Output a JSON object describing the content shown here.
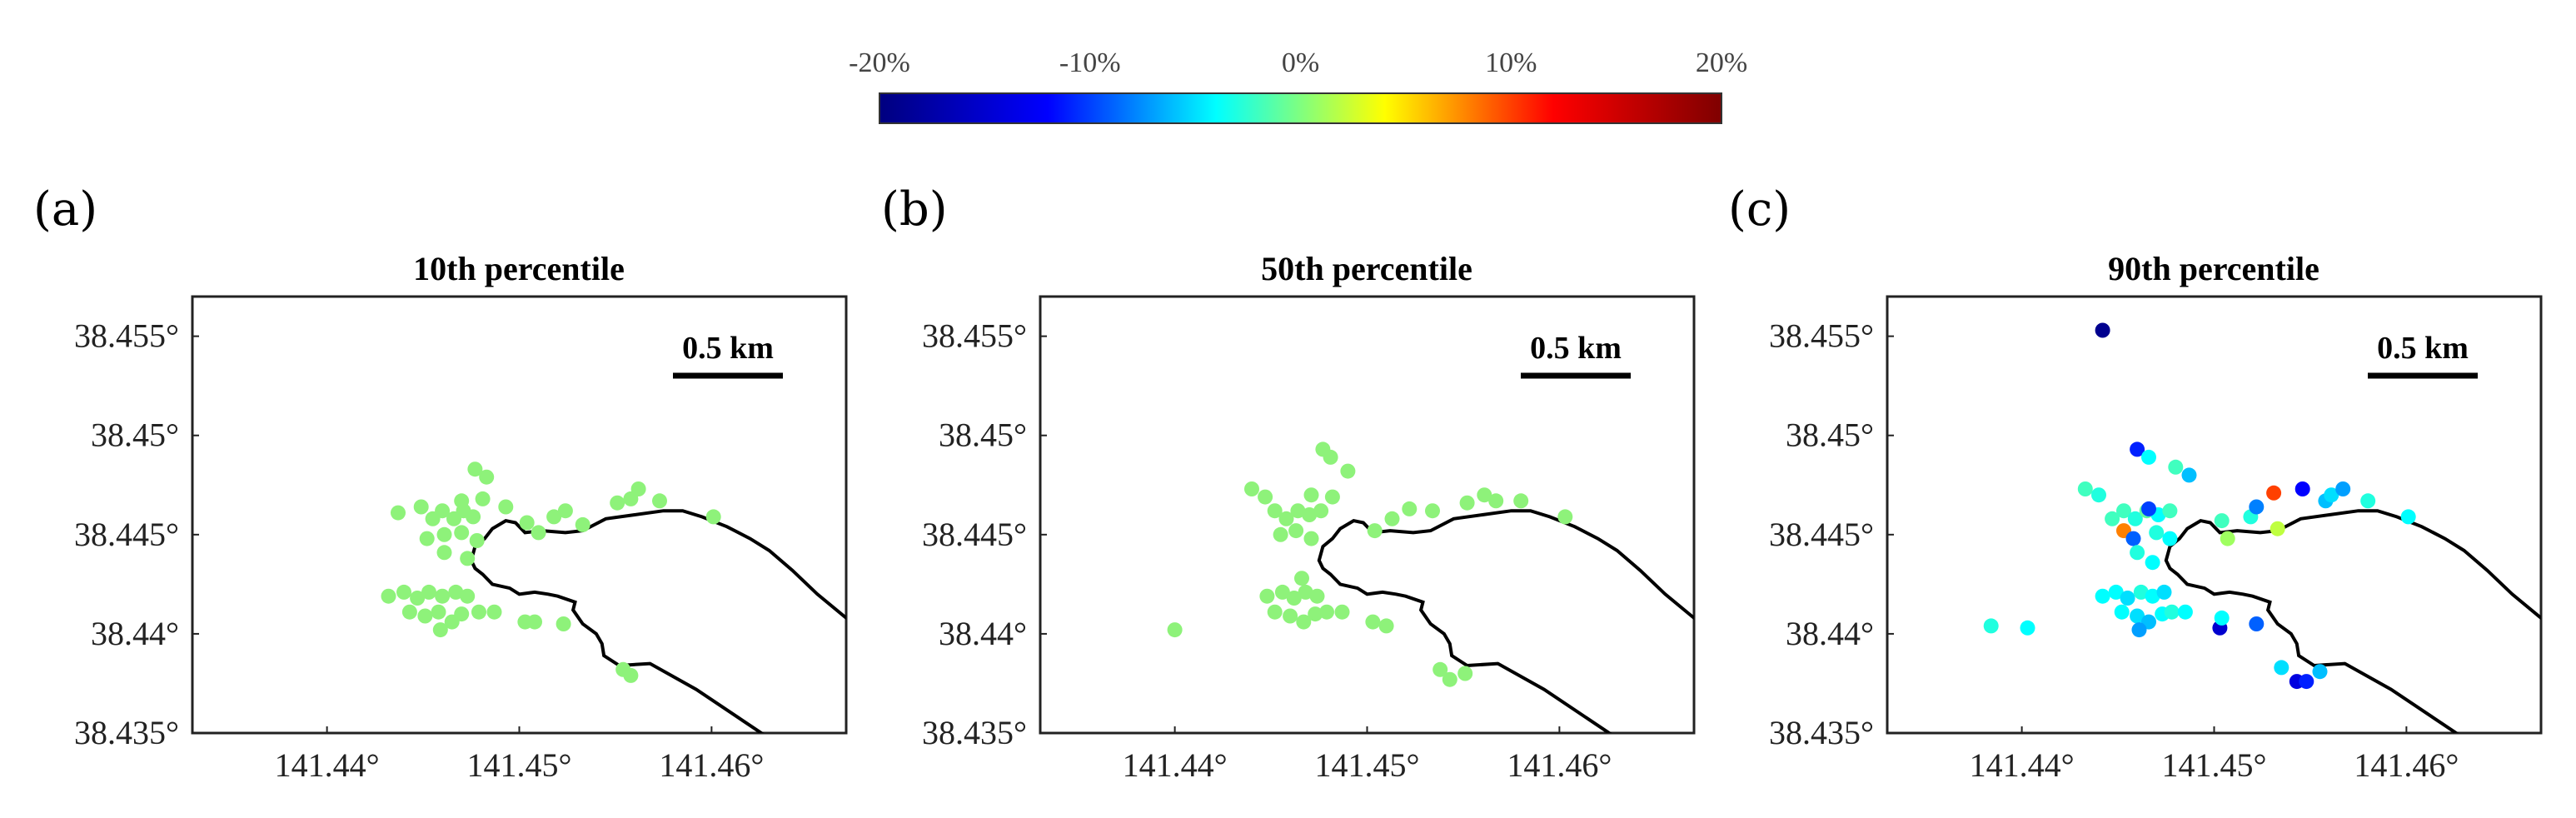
{
  "colorbar": {
    "min": -20,
    "max": 20,
    "tick_labels": [
      "-20%",
      "-10%",
      "0%",
      "10%",
      "20%"
    ],
    "tick_values": [
      -20,
      -10,
      0,
      10,
      20
    ],
    "colormap": "jet",
    "stops": [
      "#00007f",
      "#0000ff",
      "#00ffff",
      "#ffff00",
      "#ff0000",
      "#7f0000"
    ]
  },
  "chart_data": [
    {
      "type": "scatter",
      "panel": "(a)",
      "title": "10th percentile",
      "xlim": [
        141.433,
        141.467
      ],
      "ylim": [
        38.435,
        38.457
      ],
      "x_ticks": [
        141.44,
        141.45,
        141.46
      ],
      "x_tick_labels": [
        "141.44°",
        "141.45°",
        "141.46°"
      ],
      "y_ticks": [
        38.435,
        38.44,
        38.445,
        38.45,
        38.455
      ],
      "y_tick_labels": [
        "38.435°",
        "38.44°",
        "38.445°",
        "38.45°",
        "38.455°"
      ],
      "scale_bar_label": "0.5 km",
      "points": [
        {
          "x": 141.4437,
          "y": 38.4461,
          "v": 0
        },
        {
          "x": 141.4449,
          "y": 38.4464,
          "v": 0
        },
        {
          "x": 141.4455,
          "y": 38.4458,
          "v": 0
        },
        {
          "x": 141.446,
          "y": 38.4462,
          "v": 0
        },
        {
          "x": 141.4466,
          "y": 38.4458,
          "v": 0
        },
        {
          "x": 141.4471,
          "y": 38.4462,
          "v": 0
        },
        {
          "x": 141.4476,
          "y": 38.4459,
          "v": 0
        },
        {
          "x": 141.4452,
          "y": 38.4448,
          "v": 0
        },
        {
          "x": 141.4461,
          "y": 38.445,
          "v": 0
        },
        {
          "x": 141.447,
          "y": 38.4451,
          "v": 0
        },
        {
          "x": 141.4478,
          "y": 38.4447,
          "v": 0
        },
        {
          "x": 141.4461,
          "y": 38.4441,
          "v": 0
        },
        {
          "x": 141.4473,
          "y": 38.4438,
          "v": 0
        },
        {
          "x": 141.4477,
          "y": 38.4483,
          "v": 0
        },
        {
          "x": 141.4483,
          "y": 38.4479,
          "v": 0
        },
        {
          "x": 141.447,
          "y": 38.4467,
          "v": 0
        },
        {
          "x": 141.4481,
          "y": 38.4468,
          "v": 0
        },
        {
          "x": 141.4493,
          "y": 38.4464,
          "v": 0
        },
        {
          "x": 141.4432,
          "y": 38.4419,
          "v": 0
        },
        {
          "x": 141.444,
          "y": 38.4421,
          "v": 0
        },
        {
          "x": 141.4447,
          "y": 38.4418,
          "v": 0
        },
        {
          "x": 141.4453,
          "y": 38.4421,
          "v": 0
        },
        {
          "x": 141.446,
          "y": 38.4419,
          "v": 0
        },
        {
          "x": 141.4467,
          "y": 38.4421,
          "v": 0
        },
        {
          "x": 141.4473,
          "y": 38.4419,
          "v": 0
        },
        {
          "x": 141.4443,
          "y": 38.4411,
          "v": 0
        },
        {
          "x": 141.4451,
          "y": 38.4409,
          "v": 0
        },
        {
          "x": 141.4458,
          "y": 38.4411,
          "v": 0
        },
        {
          "x": 141.4465,
          "y": 38.4406,
          "v": 0
        },
        {
          "x": 141.447,
          "y": 38.441,
          "v": 0
        },
        {
          "x": 141.4479,
          "y": 38.4411,
          "v": 0
        },
        {
          "x": 141.4459,
          "y": 38.4402,
          "v": 0
        },
        {
          "x": 141.4487,
          "y": 38.4411,
          "v": 0
        },
        {
          "x": 141.4503,
          "y": 38.4406,
          "v": 0
        },
        {
          "x": 141.4508,
          "y": 38.4406,
          "v": 0
        },
        {
          "x": 141.4523,
          "y": 38.4405,
          "v": 0
        },
        {
          "x": 141.4504,
          "y": 38.4456,
          "v": 0
        },
        {
          "x": 141.451,
          "y": 38.4451,
          "v": 0
        },
        {
          "x": 141.4518,
          "y": 38.4459,
          "v": 0
        },
        {
          "x": 141.4524,
          "y": 38.4462,
          "v": 0
        },
        {
          "x": 141.4533,
          "y": 38.4455,
          "v": 0
        },
        {
          "x": 141.4551,
          "y": 38.4466,
          "v": 0
        },
        {
          "x": 141.4558,
          "y": 38.4468,
          "v": 0
        },
        {
          "x": 141.4562,
          "y": 38.4473,
          "v": 0
        },
        {
          "x": 141.4573,
          "y": 38.4467,
          "v": 0
        },
        {
          "x": 141.4601,
          "y": 38.4459,
          "v": 0
        },
        {
          "x": 141.4558,
          "y": 38.4379,
          "v": 0
        },
        {
          "x": 141.4554,
          "y": 38.4382,
          "v": 0
        }
      ]
    },
    {
      "type": "scatter",
      "panel": "(b)",
      "title": "50th percentile",
      "xlim": [
        141.433,
        141.467
      ],
      "ylim": [
        38.435,
        38.457
      ],
      "x_ticks": [
        141.44,
        141.45,
        141.46
      ],
      "x_tick_labels": [
        "141.44°",
        "141.45°",
        "141.46°"
      ],
      "y_ticks": [
        38.435,
        38.44,
        38.445,
        38.45,
        38.455
      ],
      "y_tick_labels": [
        "38.435°",
        "38.44°",
        "38.445°",
        "38.45°",
        "38.455°"
      ],
      "scale_bar_label": "0.5 km",
      "points": [
        {
          "x": 141.444,
          "y": 38.4473,
          "v": 0
        },
        {
          "x": 141.4447,
          "y": 38.4469,
          "v": 0
        },
        {
          "x": 141.4452,
          "y": 38.4462,
          "v": 0
        },
        {
          "x": 141.4458,
          "y": 38.4458,
          "v": 0
        },
        {
          "x": 141.4464,
          "y": 38.4462,
          "v": 0
        },
        {
          "x": 141.447,
          "y": 38.446,
          "v": 0
        },
        {
          "x": 141.4476,
          "y": 38.4462,
          "v": 0
        },
        {
          "x": 141.4455,
          "y": 38.445,
          "v": 0
        },
        {
          "x": 141.4463,
          "y": 38.4452,
          "v": 0
        },
        {
          "x": 141.4471,
          "y": 38.4448,
          "v": 0
        },
        {
          "x": 141.4477,
          "y": 38.4493,
          "v": 0
        },
        {
          "x": 141.4481,
          "y": 38.4489,
          "v": 0
        },
        {
          "x": 141.449,
          "y": 38.4482,
          "v": 0
        },
        {
          "x": 141.4471,
          "y": 38.447,
          "v": 0
        },
        {
          "x": 141.4482,
          "y": 38.4469,
          "v": 0
        },
        {
          "x": 141.44,
          "y": 38.4402,
          "v": 0
        },
        {
          "x": 141.4448,
          "y": 38.4419,
          "v": 0
        },
        {
          "x": 141.4456,
          "y": 38.4421,
          "v": 0
        },
        {
          "x": 141.4462,
          "y": 38.4418,
          "v": 0
        },
        {
          "x": 141.4468,
          "y": 38.4421,
          "v": 0
        },
        {
          "x": 141.4474,
          "y": 38.4419,
          "v": 0
        },
        {
          "x": 141.4452,
          "y": 38.4411,
          "v": 0
        },
        {
          "x": 141.446,
          "y": 38.4409,
          "v": 0
        },
        {
          "x": 141.4467,
          "y": 38.4406,
          "v": 0
        },
        {
          "x": 141.4473,
          "y": 38.441,
          "v": 0
        },
        {
          "x": 141.4479,
          "y": 38.4411,
          "v": 0
        },
        {
          "x": 141.4487,
          "y": 38.4411,
          "v": 0
        },
        {
          "x": 141.4466,
          "y": 38.4428,
          "v": 0
        },
        {
          "x": 141.4503,
          "y": 38.4406,
          "v": 0
        },
        {
          "x": 141.451,
          "y": 38.4404,
          "v": 0
        },
        {
          "x": 141.4504,
          "y": 38.4452,
          "v": 0
        },
        {
          "x": 141.4513,
          "y": 38.4458,
          "v": 0
        },
        {
          "x": 141.4522,
          "y": 38.4463,
          "v": 0
        },
        {
          "x": 141.4534,
          "y": 38.4462,
          "v": 0
        },
        {
          "x": 141.4552,
          "y": 38.4466,
          "v": 0
        },
        {
          "x": 141.4561,
          "y": 38.447,
          "v": 0
        },
        {
          "x": 141.4567,
          "y": 38.4467,
          "v": 0
        },
        {
          "x": 141.458,
          "y": 38.4467,
          "v": 0
        },
        {
          "x": 141.4603,
          "y": 38.4459,
          "v": 0
        },
        {
          "x": 141.4538,
          "y": 38.4382,
          "v": 0
        },
        {
          "x": 141.4543,
          "y": 38.4377,
          "v": 0
        },
        {
          "x": 141.4551,
          "y": 38.438,
          "v": 0
        }
      ]
    },
    {
      "type": "scatter",
      "panel": "(c)",
      "title": "90th percentile",
      "xlim": [
        141.433,
        141.467
      ],
      "ylim": [
        38.435,
        38.457
      ],
      "x_ticks": [
        141.44,
        141.45,
        141.46
      ],
      "x_tick_labels": [
        "141.44°",
        "141.45°",
        "141.46°"
      ],
      "y_ticks": [
        38.435,
        38.44,
        38.445,
        38.45,
        38.455
      ],
      "y_tick_labels": [
        "38.435°",
        "38.44°",
        "38.445°",
        "38.45°",
        "38.455°"
      ],
      "scale_bar_label": "0.5 km",
      "points": [
        {
          "x": 141.4442,
          "y": 38.4553,
          "v": -19
        },
        {
          "x": 141.446,
          "y": 38.4493,
          "v": -11
        },
        {
          "x": 141.4466,
          "y": 38.4489,
          "v": -4
        },
        {
          "x": 141.448,
          "y": 38.4484,
          "v": -2
        },
        {
          "x": 141.4487,
          "y": 38.448,
          "v": -6
        },
        {
          "x": 141.4384,
          "y": 38.4404,
          "v": -3
        },
        {
          "x": 141.4403,
          "y": 38.4403,
          "v": -4
        },
        {
          "x": 141.4433,
          "y": 38.4473,
          "v": -2
        },
        {
          "x": 141.444,
          "y": 38.447,
          "v": -3
        },
        {
          "x": 141.4447,
          "y": 38.4458,
          "v": -2
        },
        {
          "x": 141.4453,
          "y": 38.4462,
          "v": -2
        },
        {
          "x": 141.4459,
          "y": 38.4458,
          "v": -3
        },
        {
          "x": 141.4465,
          "y": 38.4462,
          "v": -1
        },
        {
          "x": 141.4471,
          "y": 38.446,
          "v": -4
        },
        {
          "x": 141.4477,
          "y": 38.4462,
          "v": -2
        },
        {
          "x": 141.4453,
          "y": 38.4452,
          "v": 8
        },
        {
          "x": 141.4458,
          "y": 38.4448,
          "v": -9
        },
        {
          "x": 141.4466,
          "y": 38.4463,
          "v": -10
        },
        {
          "x": 141.447,
          "y": 38.4451,
          "v": -3
        },
        {
          "x": 141.4477,
          "y": 38.4448,
          "v": -4
        },
        {
          "x": 141.446,
          "y": 38.4441,
          "v": -3
        },
        {
          "x": 141.4468,
          "y": 38.4436,
          "v": -4
        },
        {
          "x": 141.4442,
          "y": 38.4419,
          "v": -4
        },
        {
          "x": 141.4449,
          "y": 38.4421,
          "v": -4
        },
        {
          "x": 141.4455,
          "y": 38.4418,
          "v": -5
        },
        {
          "x": 141.4462,
          "y": 38.4421,
          "v": -3
        },
        {
          "x": 141.4468,
          "y": 38.4419,
          "v": -4
        },
        {
          "x": 141.4474,
          "y": 38.4421,
          "v": -5
        },
        {
          "x": 141.4452,
          "y": 38.4411,
          "v": -4
        },
        {
          "x": 141.446,
          "y": 38.4409,
          "v": -5
        },
        {
          "x": 141.4466,
          "y": 38.4406,
          "v": -6
        },
        {
          "x": 141.4473,
          "y": 38.441,
          "v": -4
        },
        {
          "x": 141.4461,
          "y": 38.4402,
          "v": -7
        },
        {
          "x": 141.4478,
          "y": 38.4411,
          "v": -3
        },
        {
          "x": 141.4485,
          "y": 38.4411,
          "v": -4
        },
        {
          "x": 141.4503,
          "y": 38.4403,
          "v": -15
        },
        {
          "x": 141.4504,
          "y": 38.4408,
          "v": -4
        },
        {
          "x": 141.4522,
          "y": 38.4405,
          "v": -9
        },
        {
          "x": 141.4504,
          "y": 38.4457,
          "v": -2
        },
        {
          "x": 141.4507,
          "y": 38.4448,
          "v": 1
        },
        {
          "x": 141.4519,
          "y": 38.4459,
          "v": -3
        },
        {
          "x": 141.4522,
          "y": 38.4464,
          "v": -8
        },
        {
          "x": 141.4531,
          "y": 38.4471,
          "v": 10
        },
        {
          "x": 141.4533,
          "y": 38.4453,
          "v": 2
        },
        {
          "x": 141.4546,
          "y": 38.4473,
          "v": -12
        },
        {
          "x": 141.4558,
          "y": 38.4467,
          "v": -6
        },
        {
          "x": 141.4561,
          "y": 38.447,
          "v": -5
        },
        {
          "x": 141.4567,
          "y": 38.4473,
          "v": -7
        },
        {
          "x": 141.458,
          "y": 38.4467,
          "v": -3
        },
        {
          "x": 141.4601,
          "y": 38.4459,
          "v": -4
        },
        {
          "x": 141.4535,
          "y": 38.4383,
          "v": -5
        },
        {
          "x": 141.4543,
          "y": 38.4376,
          "v": -14
        },
        {
          "x": 141.4548,
          "y": 38.4376,
          "v": -11
        },
        {
          "x": 141.4555,
          "y": 38.4381,
          "v": -6
        }
      ]
    }
  ],
  "coastline": [
    [
      141.4629,
      38.4348
    ],
    [
      141.4592,
      38.4372
    ],
    [
      141.4568,
      38.4385
    ],
    [
      141.4552,
      38.4384
    ],
    [
      141.4544,
      38.4389
    ],
    [
      141.4543,
      38.4395
    ],
    [
      141.454,
      38.44
    ],
    [
      141.4533,
      38.4405
    ],
    [
      141.4528,
      38.4412
    ],
    [
      141.4529,
      38.4416
    ],
    [
      141.452,
      38.4419
    ],
    [
      141.4515,
      38.442
    ],
    [
      141.4508,
      38.4421
    ],
    [
      141.45,
      38.442
    ],
    [
      141.4495,
      38.4423
    ],
    [
      141.4486,
      38.4425
    ],
    [
      141.4481,
      38.443
    ],
    [
      141.4477,
      38.4433
    ],
    [
      141.4475,
      38.4437
    ],
    [
      141.4477,
      38.4444
    ],
    [
      141.4482,
      38.4448
    ],
    [
      141.4486,
      38.4453
    ],
    [
      141.4493,
      38.4457
    ],
    [
      141.4498,
      38.4456
    ],
    [
      141.4503,
      38.4451
    ],
    [
      141.4512,
      38.4452
    ],
    [
      141.4524,
      38.4451
    ],
    [
      141.4533,
      38.4452
    ],
    [
      141.4545,
      38.4458
    ],
    [
      141.456,
      38.446
    ],
    [
      141.4575,
      38.4462
    ],
    [
      141.4585,
      38.4462
    ],
    [
      141.4595,
      38.4459
    ],
    [
      141.4608,
      38.4454
    ],
    [
      141.462,
      38.4448
    ],
    [
      141.463,
      38.4442
    ],
    [
      141.4642,
      38.4432
    ],
    [
      141.4655,
      38.442
    ],
    [
      141.467,
      38.4408
    ],
    [
      141.47,
      38.4392
    ]
  ],
  "colors": {
    "axis": "#222222",
    "coastline": "#000000",
    "scale_bar": "#000000"
  }
}
